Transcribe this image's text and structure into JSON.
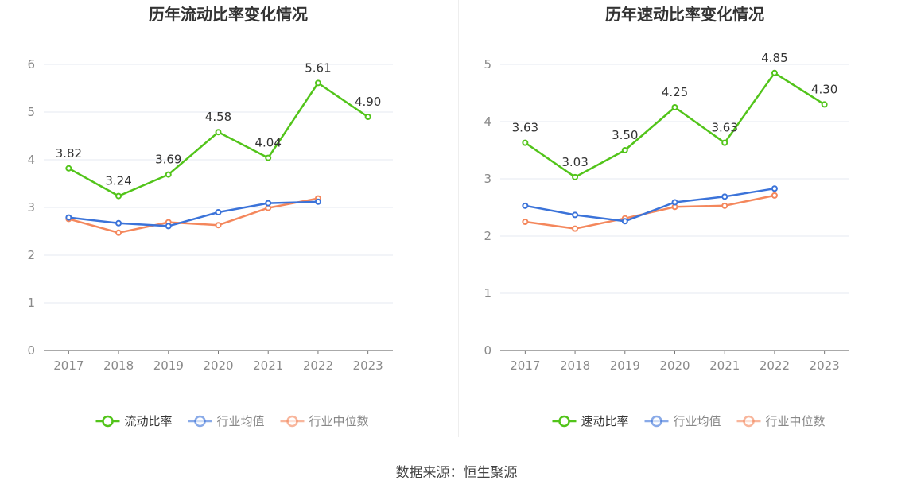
{
  "chart_data": [
    {
      "type": "line",
      "title": "历年流动比率变化情况",
      "categories": [
        "2017",
        "2018",
        "2019",
        "2020",
        "2021",
        "2022",
        "2023"
      ],
      "ylim": [
        0,
        6
      ],
      "yticks": [
        0,
        1,
        2,
        3,
        4,
        5,
        6
      ],
      "grid": true,
      "legend_position": "bottom",
      "series": [
        {
          "name": "流动比率",
          "color": "#52c41a",
          "labeled": true,
          "values": [
            3.82,
            3.24,
            3.69,
            4.58,
            4.04,
            5.61,
            4.9
          ],
          "labels": [
            "3.82",
            "3.24",
            "3.69",
            "4.58",
            "4.04",
            "5.61",
            "4.90"
          ]
        },
        {
          "name": "行业均值",
          "color": "#3b73d9",
          "labeled": false,
          "values": [
            2.79,
            2.67,
            2.61,
            2.9,
            3.09,
            3.12,
            null
          ]
        },
        {
          "name": "行业中位数",
          "color": "#f4875c",
          "labeled": false,
          "values": [
            2.76,
            2.47,
            2.69,
            2.63,
            2.99,
            3.19,
            null
          ]
        }
      ]
    },
    {
      "type": "line",
      "title": "历年速动比率变化情况",
      "categories": [
        "2017",
        "2018",
        "2019",
        "2020",
        "2021",
        "2022",
        "2023"
      ],
      "ylim": [
        0,
        5
      ],
      "yticks": [
        0,
        1,
        2,
        3,
        4,
        5
      ],
      "grid": true,
      "legend_position": "bottom",
      "series": [
        {
          "name": "速动比率",
          "color": "#52c41a",
          "labeled": true,
          "values": [
            3.63,
            3.03,
            3.5,
            4.25,
            3.63,
            4.85,
            4.3
          ],
          "labels": [
            "3.63",
            "3.03",
            "3.50",
            "4.25",
            "3.63",
            "4.85",
            "4.30"
          ]
        },
        {
          "name": "行业均值",
          "color": "#3b73d9",
          "labeled": false,
          "values": [
            2.53,
            2.37,
            2.26,
            2.59,
            2.69,
            2.83,
            null
          ]
        },
        {
          "name": "行业中位数",
          "color": "#f4875c",
          "labeled": false,
          "values": [
            2.25,
            2.13,
            2.31,
            2.51,
            2.53,
            2.71,
            null
          ]
        }
      ]
    }
  ],
  "source": "数据来源：恒生聚源"
}
